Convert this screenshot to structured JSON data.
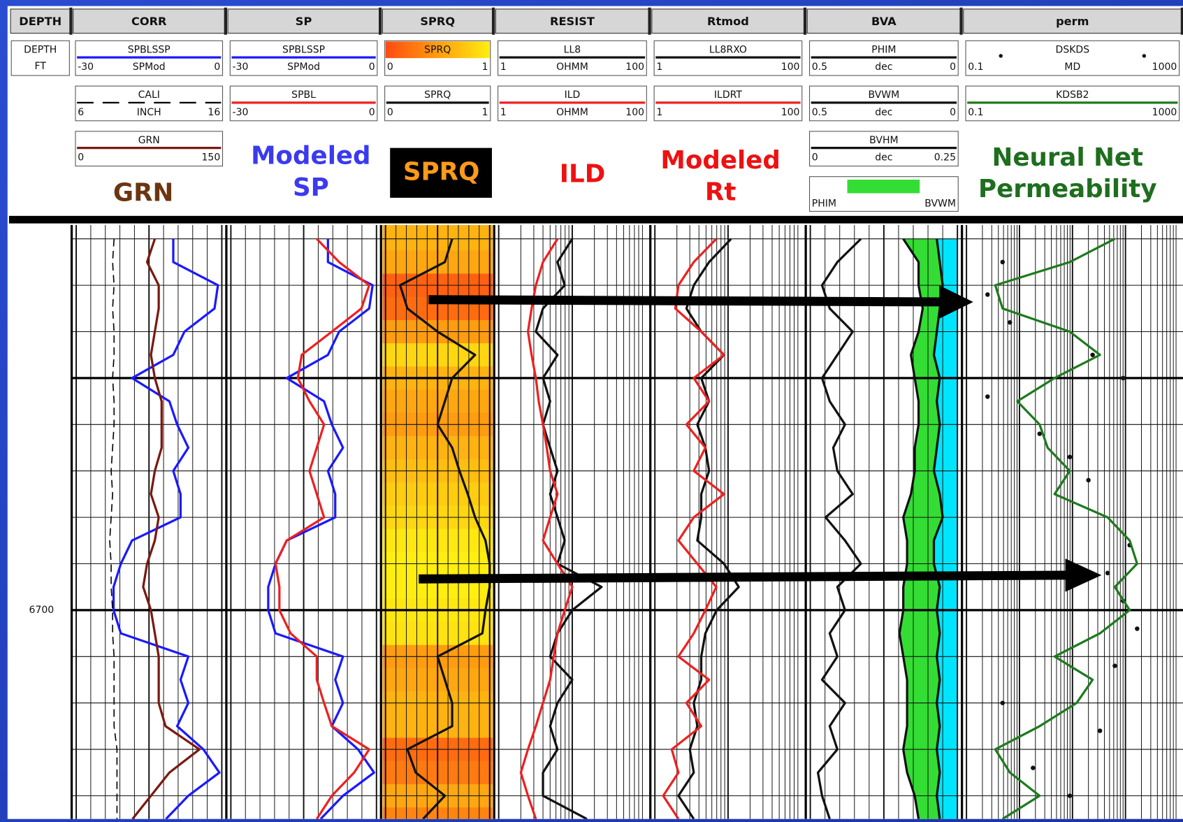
{
  "chart_data": {
    "type": "log",
    "tracks": [
      {
        "title": "DEPTH",
        "header": [
          "DEPTH",
          "FT"
        ]
      },
      {
        "title": "CORR",
        "curves": [
          {
            "name": "SPBLSSP",
            "unit": "SPMod",
            "scale": [
              -30,
              0
            ],
            "color": "#1a1aff",
            "values": [
              -10,
              -10,
              -0.8,
              -1.5,
              -7.7,
              -10,
              -18.5,
              -10.8,
              -9.2,
              -6.9,
              -10,
              -8.5,
              -8.5,
              -18.5,
              -20.8,
              -22.3,
              -22.3,
              -20.8,
              -6.9,
              -8.5,
              -6.9,
              -9.2,
              -3.8,
              -0.5,
              -6.9,
              -11.5
            ]
          },
          {
            "name": "CALI",
            "unit": "INCH",
            "scale": [
              6,
              16
            ],
            "color": "#000000",
            "dash": true,
            "values": [
              8.6,
              8.5,
              8.6,
              8.5,
              8.6,
              8.6,
              8.5,
              8.6,
              8.6,
              8.5,
              8.4,
              8.5,
              8.4,
              8.3,
              8.4,
              8.4,
              8.5,
              8.5,
              8.6,
              8.6,
              8.6,
              8.6,
              8.8,
              8.8,
              8.8,
              8.8
            ]
          },
          {
            "name": "GRN",
            "scale": [
              0,
              150
            ],
            "color": "#7a1a10",
            "values": [
              81,
              73,
              85,
              85,
              81,
              77,
              81,
              88,
              88,
              88,
              81,
              77,
              85,
              81,
              73,
              69,
              77,
              81,
              85,
              85,
              85,
              92,
              127,
              96,
              77,
              58
            ]
          }
        ]
      },
      {
        "title": "SP",
        "curves": [
          {
            "name": "SPBLSSP",
            "unit": "SPMod",
            "scale": [
              -30,
              0
            ],
            "color": "#1a1aff",
            "values": [
              -10,
              -10,
              -0.8,
              -1.5,
              -7.7,
              -10,
              -18.5,
              -10.8,
              -9.2,
              -6.9,
              -10,
              -8.5,
              -8.5,
              -18.5,
              -20.8,
              -22.3,
              -22.3,
              -20.8,
              -6.9,
              -8.5,
              -6.9,
              -9.2,
              -3.8,
              -0.5,
              -6.9,
              -11.5
            ]
          },
          {
            "name": "SPBL",
            "scale": [
              -30,
              0
            ],
            "color": "#ee2020",
            "values": [
              -12.3,
              -7.7,
              -1.5,
              -3.1,
              -9.2,
              -15.4,
              -16.2,
              -13.8,
              -10.8,
              -12.3,
              -13.8,
              -12.3,
              -10.8,
              -18.5,
              -20.8,
              -20,
              -20,
              -17.7,
              -12.3,
              -12.3,
              -10.8,
              -9.2,
              -1.5,
              -4.6,
              -9.2,
              -12.3
            ]
          }
        ]
      },
      {
        "title": "SPRQ",
        "curves": [
          {
            "name": "SPRQ",
            "scale": [
              0,
              1
            ],
            "fill_colors": [
              "#ff4a10",
              "#ffee10"
            ],
            "values": [
              0.64,
              0.57,
              0.14,
              0.21,
              0.5,
              0.86,
              0.64,
              0.57,
              0.5,
              0.64,
              0.71,
              0.79,
              0.86,
              0.96,
              1,
              1,
              0.96,
              0.93,
              0.5,
              0.57,
              0.64,
              0.64,
              0.21,
              0.29,
              0.57,
              0.36
            ]
          },
          {
            "name": "SPRQ",
            "scale": [
              0,
              1
            ],
            "color": "#111111",
            "values": [
              0.64,
              0.57,
              0.14,
              0.21,
              0.5,
              0.86,
              0.64,
              0.57,
              0.5,
              0.64,
              0.71,
              0.79,
              0.86,
              0.96,
              1,
              1,
              0.96,
              0.93,
              0.5,
              0.57,
              0.64,
              0.64,
              0.21,
              0.29,
              0.57,
              0.36
            ]
          }
        ]
      },
      {
        "title": "RESIST",
        "curves": [
          {
            "name": "LL8",
            "unit": "OHMM",
            "scale": [
              1,
              100
            ],
            "log": true,
            "color": "#111111",
            "values": [
              10,
              6.3,
              7.9,
              4,
              3.2,
              6.3,
              4,
              5,
              4,
              5,
              6.3,
              5,
              6.3,
              7.9,
              6.3,
              25,
              10,
              6.3,
              5,
              10,
              6.3,
              5,
              6.3,
              4,
              4,
              15.8
            ]
          },
          {
            "name": "ILD",
            "unit": "OHMM",
            "scale": [
              1,
              100
            ],
            "log": true,
            "color": "#ee2020",
            "values": [
              6.3,
              4,
              3.2,
              2.8,
              2.5,
              2.8,
              3.2,
              3.5,
              4,
              4.5,
              5,
              6.3,
              5,
              4,
              6.3,
              10,
              7.9,
              6.3,
              5.6,
              5,
              4,
              3.2,
              2.5,
              2,
              2.5,
              3.2
            ]
          }
        ]
      },
      {
        "title": "Rtmod",
        "curves": [
          {
            "name": "LL8RXO",
            "scale": [
              1,
              100
            ],
            "log": true,
            "color": "#111111",
            "values": [
              11,
              5.5,
              3.4,
              2.7,
              4.3,
              8.8,
              4.3,
              5.5,
              3.8,
              4.9,
              5.5,
              4.3,
              4.3,
              3.8,
              8.8,
              14,
              7,
              4.9,
              4.3,
              4.3,
              3.4,
              3.8,
              3,
              3.4,
              2.1,
              3.4
            ]
          },
          {
            "name": "ILDRT",
            "scale": [
              1,
              100
            ],
            "log": true,
            "color": "#ee2020",
            "values": [
              6.9,
              3.4,
              2.1,
              1.9,
              4.3,
              8.8,
              3.4,
              5.5,
              2.7,
              4.9,
              3.4,
              8.8,
              3.4,
              2.1,
              3.8,
              6.9,
              4.9,
              3.4,
              2.1,
              5.5,
              2.7,
              4.3,
              1.7,
              2.1,
              1.3,
              2.1
            ]
          }
        ]
      },
      {
        "title": "BVA",
        "fill_legend": [
          "PHIM",
          "BVWM"
        ],
        "fill_color": "#33dd33",
        "water_color": "#00e5ff",
        "curves": [
          {
            "name": "PHIM",
            "unit": "dec",
            "scale": [
              0.5,
              0
            ],
            "color": "#111111",
            "values": [
              0.184,
              0.132,
              0.132,
              0.118,
              0.132,
              0.158,
              0.145,
              0.132,
              0.132,
              0.145,
              0.145,
              0.158,
              0.184,
              0.171,
              0.171,
              0.184,
              0.184,
              0.197,
              0.184,
              0.171,
              0.171,
              0.171,
              0.184,
              0.171,
              0.145,
              0.132
            ]
          },
          {
            "name": "BVWM",
            "unit": "dec",
            "scale": [
              0.5,
              0
            ],
            "color": "#111111",
            "values": [
              0.07,
              0.06,
              0.05,
              0.06,
              0.07,
              0.08,
              0.06,
              0.07,
              0.06,
              0.07,
              0.08,
              0.06,
              0.05,
              0.08,
              0.08,
              0.06,
              0.07,
              0.06,
              0.07,
              0.06,
              0.07,
              0.06,
              0.07,
              0.06,
              0.07,
              0.06
            ]
          },
          {
            "name": "BVHM",
            "unit": "dec",
            "scale": [
              0,
              0.25
            ],
            "color": "#111111",
            "values": [
              0.086,
              0.046,
              0.02,
              0.033,
              0.072,
              0.046,
              0.02,
              0.033,
              0.059,
              0.039,
              0.046,
              0.072,
              0.026,
              0.059,
              0.086,
              0.046,
              0.059,
              0.033,
              0.046,
              0.02,
              0.059,
              0.033,
              0.046,
              0.013,
              0.02,
              0.033
            ]
          }
        ]
      },
      {
        "title": "perm",
        "curves": [
          {
            "name": "DSKDS",
            "unit": "MD",
            "scale": [
              0.1,
              1000
            ],
            "log": true,
            "color": "#111111",
            "style": "dots",
            "depths": [
              6625,
              6632,
              6638,
              6645,
              6650,
              6654,
              6662,
              6667,
              6672,
              6686,
              6692,
              6698,
              6704,
              6712,
              6720,
              6726,
              6734,
              6740
            ],
            "values": [
              0.48,
              0.25,
              0.66,
              24,
              90,
              0.25,
              2.4,
              8.9,
              20,
              120,
              46,
              90,
              166,
              63,
              0.48,
              33,
              1.8,
              8.9
            ]
          },
          {
            "name": "KDSB2",
            "scale": [
              0.1,
              1000
            ],
            "log": true,
            "color": "#1e7a1e",
            "values": [
              63,
              8.9,
              0.35,
              0.48,
              8.9,
              33,
              4.6,
              0.91,
              2.4,
              3.4,
              8.9,
              4.6,
              46,
              120,
              166,
              63,
              120,
              33,
              4.6,
              24,
              12,
              2.4,
              0.35,
              0.66,
              2.4,
              0.48
            ]
          }
        ]
      }
    ],
    "depths": [
      6620,
      6625,
      6630,
      6635,
      6640,
      6645,
      6650,
      6655,
      6660,
      6665,
      6670,
      6675,
      6680,
      6685,
      6690,
      6695,
      6700,
      6705,
      6710,
      6715,
      6720,
      6725,
      6730,
      6735,
      6740,
      6745
    ],
    "depth": {
      "ylim": [
        6617,
        6745
      ],
      "grid": [
        6620,
        6630,
        6640,
        6660,
        6670,
        6680,
        6690,
        6710,
        6720,
        6730,
        6740
      ],
      "major": [
        6650,
        6700
      ],
      "labels": [
        6700
      ]
    },
    "annotations": [
      {
        "lines": [
          "GRN"
        ],
        "color": "#6b3510"
      },
      {
        "lines": [
          "Modeled",
          "SP"
        ],
        "color": "#3a3af0"
      },
      {
        "lines": [
          "SPRQ"
        ],
        "color": "#ff9a1a"
      },
      {
        "lines": [
          "ILD"
        ],
        "color": "#ee1111"
      },
      {
        "lines": [
          "Modeled",
          "Rt"
        ],
        "color": "#ee1111"
      },
      {
        "lines": [
          "Neural Net",
          "Permeability"
        ],
        "color": "#1e6e1e"
      }
    ]
  }
}
